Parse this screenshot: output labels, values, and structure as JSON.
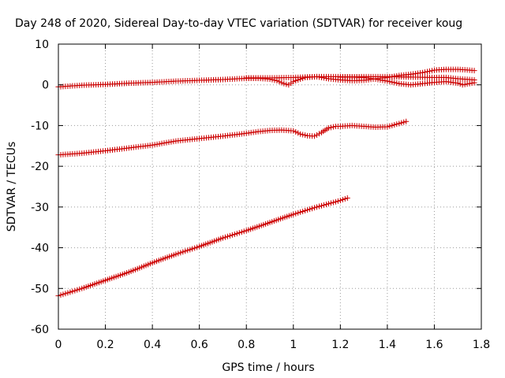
{
  "chart_data": {
    "type": "scatter",
    "title": "Day 248 of 2020, Sidereal Day-to-day VTEC variation (SDTVAR) for receiver koug",
    "xlabel": "GPS time / hours",
    "ylabel": "SDTVAR / TECUs",
    "xlim": [
      0,
      1.8
    ],
    "ylim": [
      -60,
      10
    ],
    "xticks": [
      0,
      0.2,
      0.4,
      0.6,
      0.8,
      1,
      1.2,
      1.4,
      1.6,
      1.8
    ],
    "xtick_labels": [
      "0",
      "0.2",
      "0.4",
      "0.6",
      "0.8",
      "1",
      "1.2",
      "1.4",
      "1.6",
      "1.8"
    ],
    "yticks": [
      10,
      0,
      -10,
      -20,
      -30,
      -40,
      -50,
      -60
    ],
    "ytick_labels": [
      "10",
      "0",
      "-10",
      "-20",
      "-30",
      "-40",
      "-50",
      "-60"
    ],
    "grid": true,
    "marker": "+",
    "color": "#cc0000",
    "series": [
      {
        "name": "trace-upper-1",
        "x": [
          0,
          0.1,
          0.2,
          0.3,
          0.4,
          0.5,
          0.6,
          0.7,
          0.8,
          0.85,
          0.9,
          0.93,
          0.96,
          0.98,
          1.0,
          1.05,
          1.1,
          1.15,
          1.2,
          1.25,
          1.3,
          1.35,
          1.4,
          1.45,
          1.5,
          1.55,
          1.6,
          1.65,
          1.7,
          1.75,
          1.77
        ],
        "y": [
          -0.5,
          -0.1,
          0.1,
          0.4,
          0.6,
          0.9,
          1.1,
          1.3,
          1.6,
          1.6,
          1.4,
          1.0,
          0.3,
          0.0,
          0.8,
          1.8,
          2.0,
          1.5,
          1.2,
          1.0,
          1.1,
          1.5,
          1.8,
          2.3,
          2.6,
          3.0,
          3.6,
          3.8,
          3.8,
          3.6,
          3.5
        ]
      },
      {
        "name": "trace-upper-2",
        "x": [
          0.8,
          0.9,
          1.0,
          1.1,
          1.2,
          1.3,
          1.35,
          1.4,
          1.45,
          1.5,
          1.55,
          1.6,
          1.65,
          1.7,
          1.72,
          1.75,
          1.77
        ],
        "y": [
          1.7,
          1.7,
          1.8,
          2.0,
          2.0,
          1.8,
          1.4,
          0.9,
          0.3,
          0.0,
          0.3,
          0.6,
          0.8,
          0.4,
          0.0,
          0.3,
          0.5
        ]
      },
      {
        "name": "trace-upper-3",
        "x": [
          1.2,
          1.3,
          1.4,
          1.5,
          1.6,
          1.65,
          1.7,
          1.75,
          1.77
        ],
        "y": [
          1.9,
          2.0,
          2.0,
          1.9,
          1.8,
          1.8,
          1.5,
          1.3,
          1.2
        ]
      },
      {
        "name": "trace-middle",
        "x": [
          0,
          0.1,
          0.2,
          0.3,
          0.4,
          0.5,
          0.6,
          0.7,
          0.8,
          0.85,
          0.9,
          0.95,
          1.0,
          1.03,
          1.06,
          1.09,
          1.12,
          1.15,
          1.18,
          1.2,
          1.25,
          1.3,
          1.35,
          1.4,
          1.45,
          1.48
        ],
        "y": [
          -17.2,
          -16.8,
          -16.2,
          -15.5,
          -14.8,
          -13.8,
          -13.2,
          -12.6,
          -11.9,
          -11.5,
          -11.2,
          -11.1,
          -11.3,
          -12.1,
          -12.5,
          -12.6,
          -11.7,
          -10.6,
          -10.2,
          -10.2,
          -10.0,
          -10.2,
          -10.4,
          -10.3,
          -9.5,
          -9.0
        ]
      },
      {
        "name": "trace-lower",
        "x": [
          0,
          0.1,
          0.2,
          0.3,
          0.4,
          0.5,
          0.6,
          0.7,
          0.8,
          0.9,
          1.0,
          1.1,
          1.2,
          1.23
        ],
        "y": [
          -51.8,
          -50.0,
          -48.0,
          -46.0,
          -43.7,
          -41.6,
          -39.7,
          -37.6,
          -35.8,
          -33.8,
          -31.8,
          -30.0,
          -28.4,
          -27.8
        ]
      }
    ]
  }
}
